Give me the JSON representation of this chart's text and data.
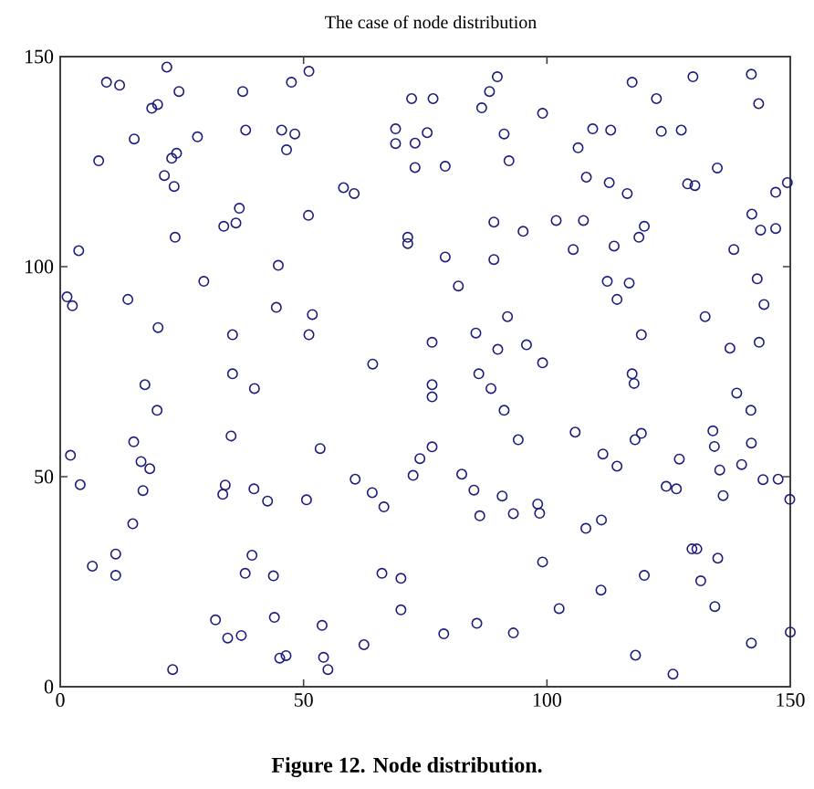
{
  "chart_data": {
    "type": "scatter",
    "title": "The case of node distribution",
    "annotations": [
      "Figure 12. Node distribution."
    ],
    "x": [
      21.9,
      9.5,
      12.2,
      24.4,
      51.1,
      47.5,
      37.5,
      18.8,
      20.0,
      15.2,
      7.9,
      28.2,
      38.1,
      45.5,
      48.2,
      46.5,
      22.9,
      23.9,
      21.4,
      23.4,
      58.2,
      60.4,
      51.0,
      36.8,
      33.6,
      36.1,
      23.6,
      3.8,
      44.8,
      1.4,
      2.5,
      13.9,
      29.5,
      44.4,
      51.8,
      20.1,
      35.4,
      51.1,
      64.2,
      68.9,
      68.9,
      72.2,
      76.6,
      89.8,
      88.2,
      86.6,
      99.1,
      91.2,
      92.2,
      75.4,
      72.9,
      72.9,
      79.1,
      117.5,
      122.5,
      130.0,
      142.0,
      143.5,
      109.4,
      113.1,
      123.5,
      127.6,
      106.4,
      135.0,
      108.1,
      112.8,
      116.5,
      128.9,
      130.4,
      149.4,
      147.0,
      89.1,
      95.1,
      101.9,
      107.5,
      71.4,
      71.4,
      79.1,
      89.1,
      105.4,
      113.8,
      120.0,
      118.9,
      138.4,
      142.1,
      143.9,
      147.0,
      81.8,
      112.4,
      116.9,
      114.4,
      143.2,
      144.6,
      91.9,
      132.5,
      76.4,
      85.4,
      89.9,
      95.8,
      99.1,
      119.4,
      137.6,
      143.6,
      35.4,
      17.4,
      39.9,
      19.9,
      35.1,
      15.1,
      2.1,
      16.6,
      18.4,
      53.4,
      4.1,
      17.0,
      33.9,
      33.4,
      39.8,
      42.6,
      50.6,
      60.6,
      64.1,
      66.5,
      14.9,
      6.6,
      11.4,
      11.4,
      39.4,
      38.0,
      43.8,
      31.9,
      34.4,
      37.2,
      44.0,
      53.8,
      45.1,
      46.4,
      54.1,
      55.0,
      23.1,
      62.4,
      66.1,
      70.0,
      70.0,
      76.4,
      76.4,
      86.0,
      88.5,
      91.2,
      117.5,
      117.9,
      139.0,
      141.9,
      94.1,
      105.8,
      111.5,
      114.4,
      118.1,
      119.4,
      127.2,
      134.1,
      134.4,
      135.5,
      140.0,
      142.0,
      144.4,
      147.5,
      149.9,
      136.2,
      124.5,
      126.6,
      76.4,
      73.9,
      72.5,
      82.5,
      85.0,
      86.2,
      90.8,
      93.1,
      98.1,
      98.5,
      108.0,
      111.2,
      99.1,
      120.0,
      111.1,
      102.5,
      85.6,
      78.8,
      93.1,
      129.8,
      130.8,
      135.1,
      131.6,
      134.5,
      118.2,
      125.9,
      142.0,
      150.0
    ],
    "values": [
      147.5,
      143.9,
      143.2,
      141.7,
      146.5,
      143.9,
      141.7,
      137.7,
      138.6,
      130.4,
      125.2,
      130.9,
      132.5,
      132.5,
      131.6,
      127.8,
      125.8,
      127.0,
      121.7,
      119.1,
      118.8,
      117.4,
      112.2,
      113.9,
      109.6,
      110.4,
      107.0,
      103.8,
      100.3,
      92.8,
      90.7,
      92.2,
      96.5,
      90.3,
      88.6,
      85.5,
      83.8,
      83.8,
      76.8,
      132.8,
      129.3,
      140.0,
      140.0,
      145.2,
      141.7,
      137.8,
      136.5,
      131.6,
      125.2,
      131.9,
      129.4,
      123.6,
      123.9,
      143.9,
      140.0,
      145.2,
      145.8,
      138.8,
      132.8,
      132.5,
      132.2,
      132.5,
      128.3,
      123.5,
      121.3,
      120.0,
      117.4,
      119.7,
      119.3,
      120.0,
      117.7,
      110.6,
      108.4,
      111.0,
      111.0,
      107.0,
      105.5,
      102.3,
      101.7,
      104.1,
      104.9,
      109.6,
      107.0,
      104.1,
      112.5,
      108.7,
      109.1,
      95.4,
      96.5,
      96.1,
      92.2,
      97.1,
      91.0,
      88.1,
      88.1,
      82.0,
      84.2,
      80.3,
      81.4,
      77.1,
      83.8,
      80.6,
      82.0,
      74.5,
      71.9,
      71.0,
      65.8,
      59.7,
      58.3,
      55.1,
      53.6,
      51.9,
      56.7,
      48.1,
      46.7,
      48.0,
      45.8,
      47.1,
      44.2,
      44.5,
      49.4,
      46.2,
      42.8,
      38.8,
      28.7,
      31.6,
      26.5,
      31.3,
      27.0,
      26.4,
      15.9,
      11.6,
      12.2,
      16.5,
      14.6,
      6.8,
      7.4,
      7.0,
      4.1,
      4.1,
      10.0,
      27.0,
      25.8,
      18.3,
      71.9,
      69.0,
      74.5,
      71.0,
      65.8,
      74.5,
      72.2,
      69.9,
      65.8,
      58.8,
      60.6,
      55.4,
      52.5,
      58.8,
      60.3,
      54.2,
      60.9,
      57.2,
      51.6,
      52.9,
      58.0,
      49.3,
      49.4,
      44.6,
      45.5,
      47.7,
      47.1,
      57.1,
      54.3,
      50.3,
      50.6,
      46.8,
      40.7,
      45.4,
      41.2,
      43.5,
      41.3,
      37.7,
      39.7,
      29.7,
      26.5,
      23.0,
      18.6,
      15.1,
      12.6,
      12.8,
      32.8,
      32.8,
      30.6,
      25.2,
      19.1,
      7.5,
      3.0,
      10.4,
      13.0
    ],
    "color": "#1c1c7c",
    "marker": "circle",
    "xlim": [
      0,
      150
    ],
    "ylim": [
      0,
      150
    ],
    "xticks": [
      0,
      50,
      100,
      150
    ],
    "yticks": [
      0,
      50,
      100,
      150
    ]
  }
}
